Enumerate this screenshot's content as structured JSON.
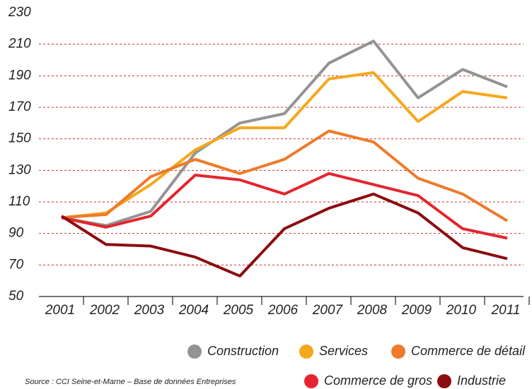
{
  "chart_data": {
    "type": "line",
    "categories": [
      "2001",
      "2002",
      "2003",
      "2004",
      "2005",
      "2006",
      "2007",
      "2008",
      "2009",
      "2010",
      "2011"
    ],
    "series": [
      {
        "name": "Construction",
        "color": "#939393",
        "values": [
          100,
          95,
          104,
          141,
          160,
          166,
          198,
          212,
          176,
          194,
          183
        ]
      },
      {
        "name": "Services",
        "color": "#f5a81c",
        "values": [
          100,
          103,
          121,
          143,
          157,
          157,
          188,
          192,
          161,
          180,
          176
        ]
      },
      {
        "name": "Commerce de détail",
        "color": "#ee7a2a",
        "values": [
          100,
          102,
          126,
          137,
          128,
          137,
          155,
          148,
          125,
          115,
          98
        ]
      },
      {
        "name": "Commerce de gros",
        "color": "#e4252e",
        "values": [
          100,
          94,
          101,
          127,
          124,
          115,
          128,
          121,
          114,
          93,
          87
        ]
      },
      {
        "name": "Industrie",
        "color": "#8b0d10",
        "values": [
          101,
          83,
          82,
          75,
          63,
          93,
          106,
          115,
          103,
          81,
          74
        ]
      }
    ],
    "ylim": [
      50,
      230
    ],
    "yticks": [
      50,
      70,
      90,
      110,
      130,
      150,
      170,
      190,
      210,
      230
    ],
    "grid": true,
    "source": "Source : CCI Seine-et-Marne – Base de données Entreprises"
  }
}
